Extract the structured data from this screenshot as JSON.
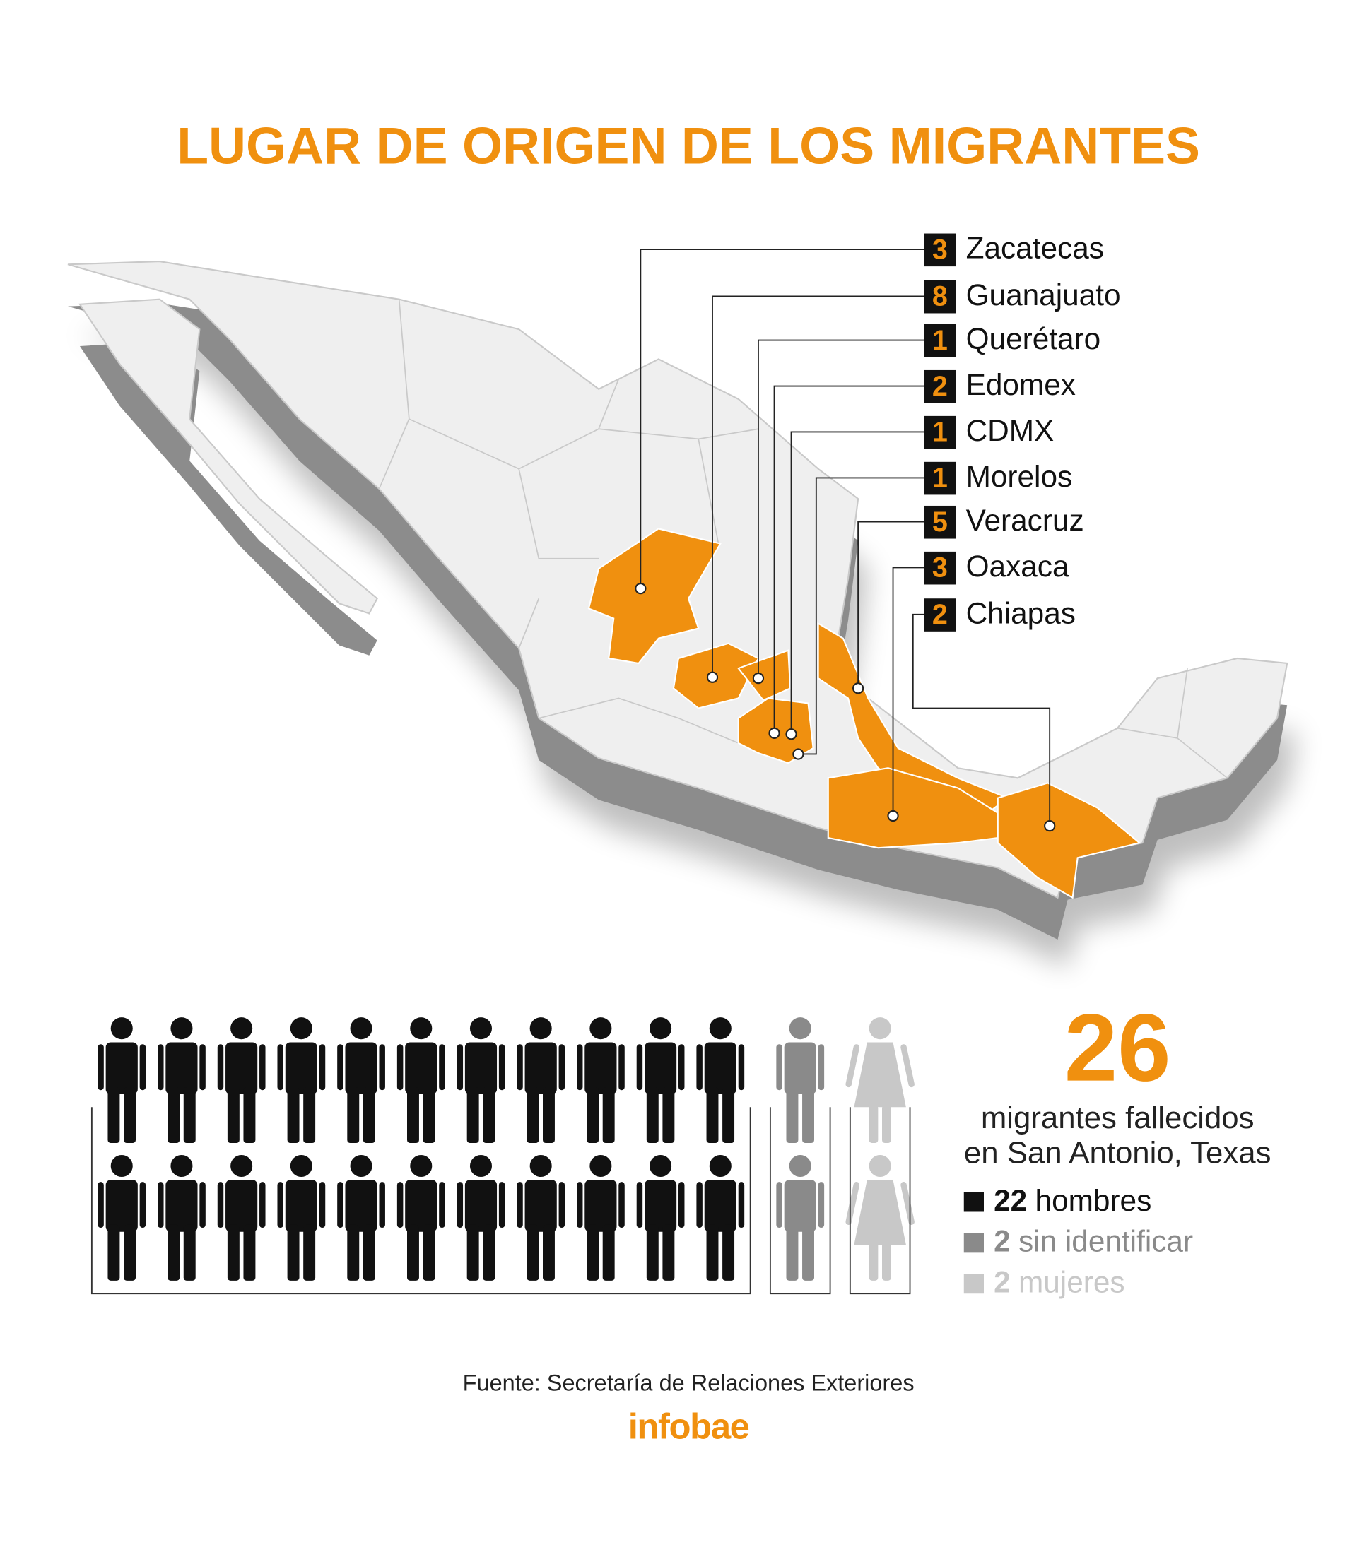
{
  "title": "LUGAR DE ORIGEN DE LOS MIGRANTES",
  "states": [
    {
      "count": 3,
      "name": "Zacatecas"
    },
    {
      "count": 8,
      "name": "Guanajuato"
    },
    {
      "count": 1,
      "name": "Querétaro"
    },
    {
      "count": 2,
      "name": "Edomex"
    },
    {
      "count": 1,
      "name": "CDMX"
    },
    {
      "count": 1,
      "name": "Morelos"
    },
    {
      "count": 5,
      "name": "Veracruz"
    },
    {
      "count": 3,
      "name": "Oaxaca"
    },
    {
      "count": 2,
      "name": "Chiapas"
    }
  ],
  "total": {
    "value": 26,
    "caption": [
      "migrantes fallecidos",
      "en San Antonio, Texas"
    ]
  },
  "breakdown": [
    {
      "count": 22,
      "label": "hombres",
      "color": "#111111",
      "icon": "man"
    },
    {
      "count": 2,
      "label": "sin identificar",
      "color": "#8a8a8a",
      "icon": "man"
    },
    {
      "count": 2,
      "label": "mujeres",
      "color": "#c8c8c8",
      "icon": "woman"
    }
  ],
  "source": "Fuente: Secretaría de Relaciones Exteriores",
  "brand": "infobae"
}
